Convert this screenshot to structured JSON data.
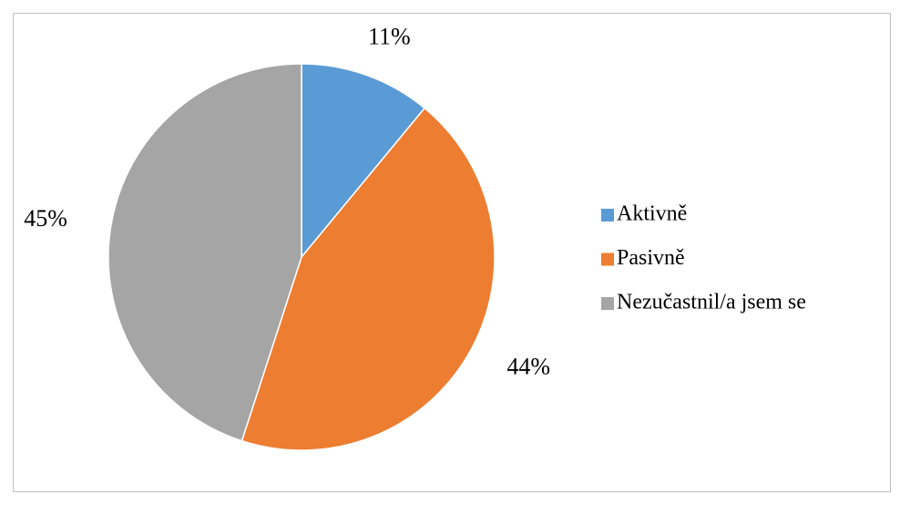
{
  "chart_data": {
    "type": "pie",
    "categories": [
      "Aktivně",
      "Pasivně",
      "Nezučastnil/a jsem se"
    ],
    "values": [
      11,
      44,
      45
    ],
    "value_labels": [
      "11%",
      "44%",
      "45%"
    ],
    "colors": [
      "#5b9bd5",
      "#ed7d31",
      "#a5a5a5"
    ],
    "legend": "right"
  }
}
